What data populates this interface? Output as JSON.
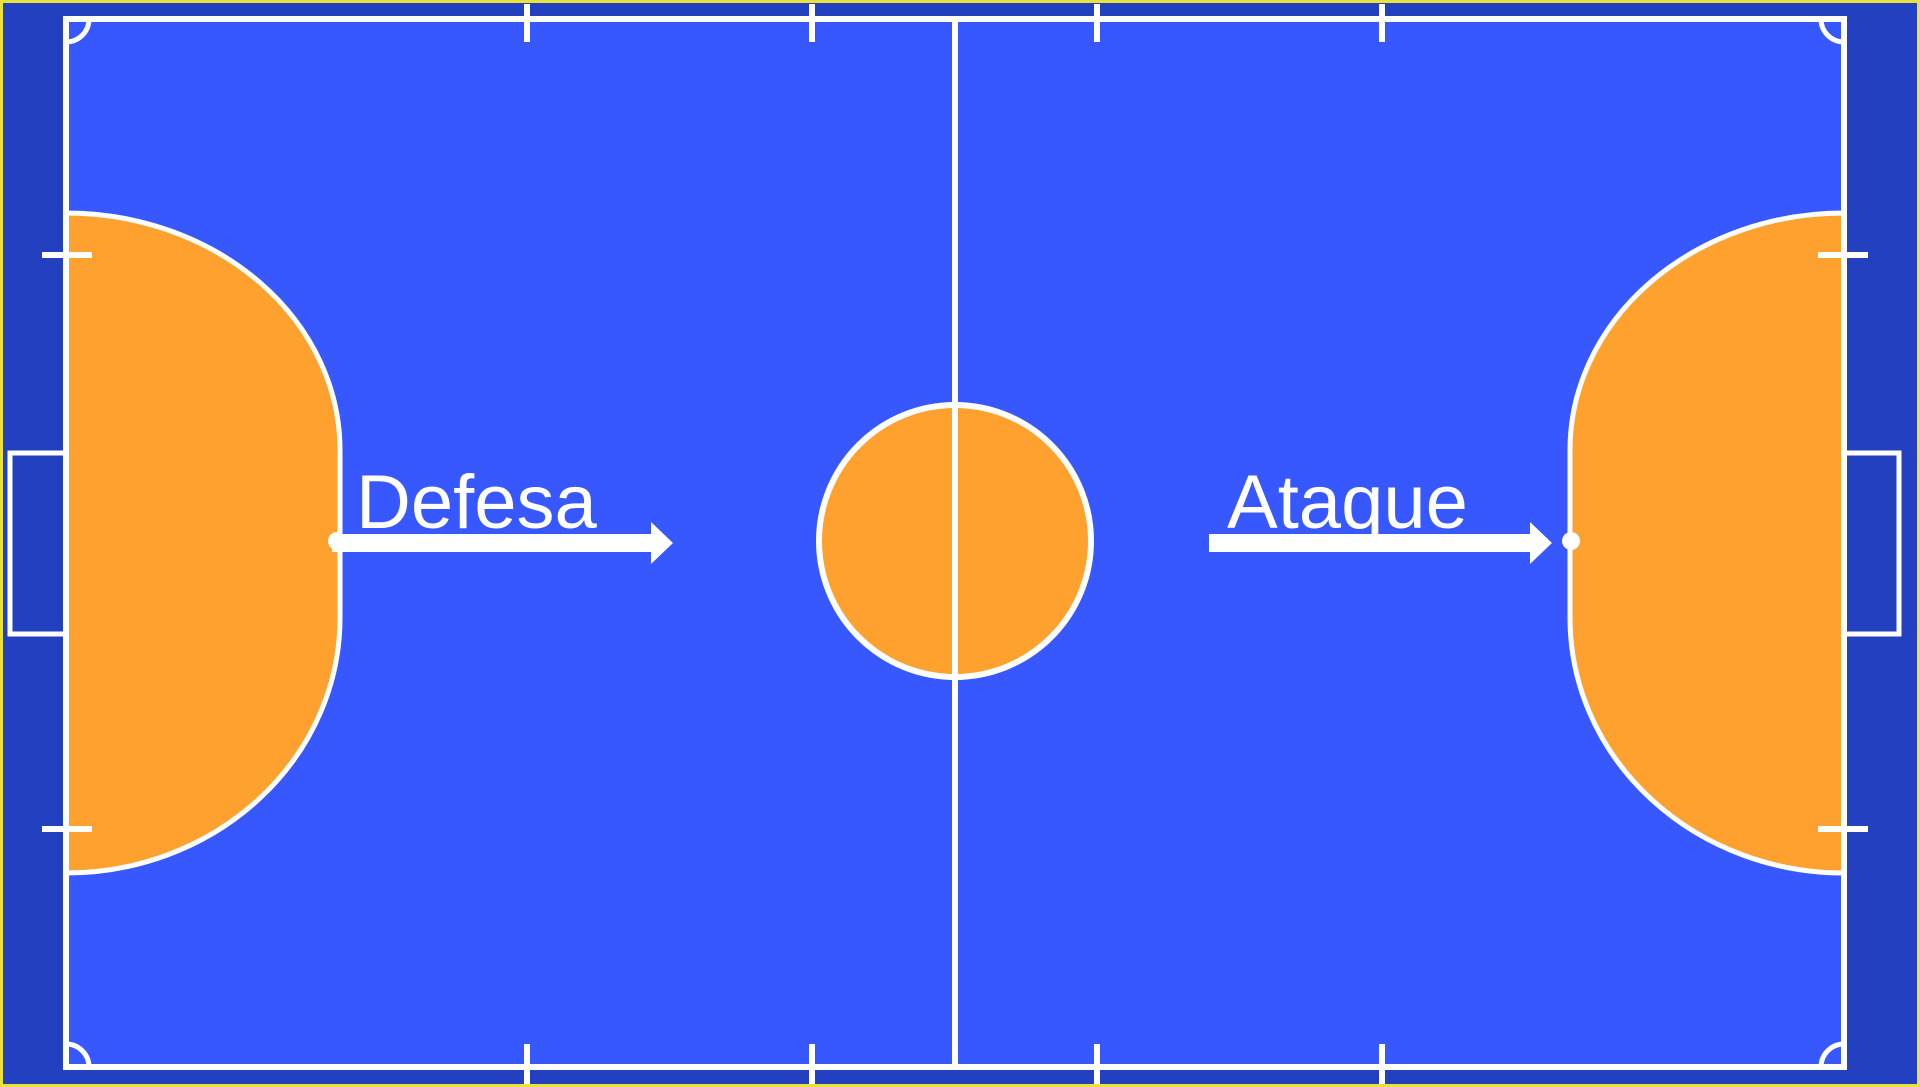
{
  "diagram": {
    "labels": {
      "left": "Defesa",
      "right": "Ataque"
    },
    "colors": {
      "frame_border": "#e8e23a",
      "outer_area": "#2340c0",
      "playing_surface": "#3858ff",
      "penalty_area": "#ffa12e",
      "center_circle": "#ffa12e",
      "lines": "#ffffff",
      "arrows": "#ffffff"
    }
  }
}
